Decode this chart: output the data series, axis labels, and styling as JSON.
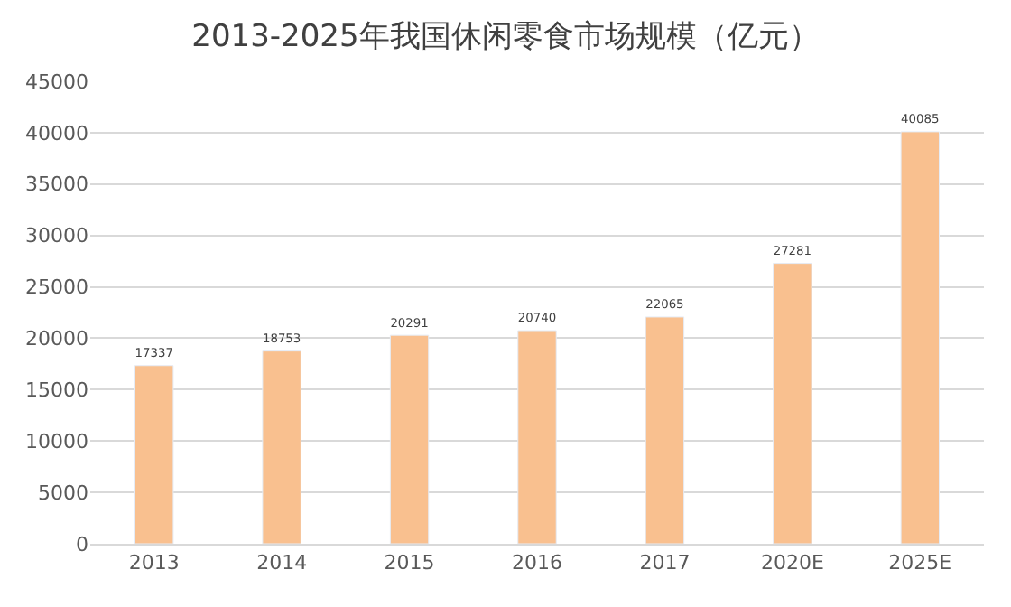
{
  "chart_data": {
    "type": "bar",
    "title": "2013-2025年我国休闲零食市场规模（亿元）",
    "categories": [
      "2013",
      "2014",
      "2015",
      "2016",
      "2017",
      "2020E",
      "2025E"
    ],
    "values": [
      17337,
      18753,
      20291,
      20740,
      22065,
      27281,
      40085
    ],
    "color": "#f9c08f",
    "ylim": [
      0,
      45000
    ],
    "yticks": [
      0,
      5000,
      10000,
      15000,
      20000,
      25000,
      30000,
      35000,
      40000,
      45000
    ],
    "grid": "y",
    "data_labels": true
  }
}
